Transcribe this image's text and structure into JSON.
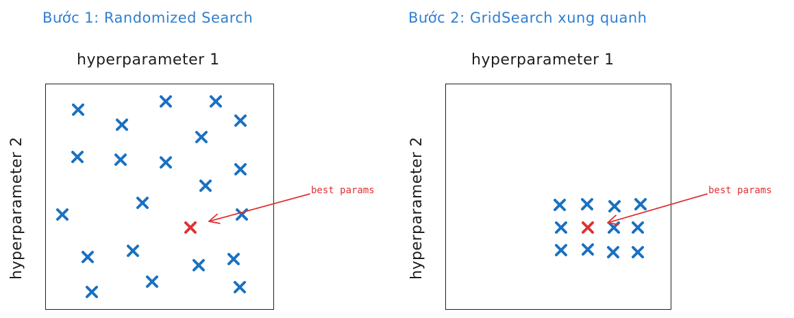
{
  "panels": [
    {
      "title": "Bước 1: Randomized Search",
      "x_axis_label": "hyperparameter 1",
      "y_axis_label": "hyperparameter 2",
      "annotation": "best params",
      "marker_color": "#1971c2",
      "best_color": "#e03131"
    },
    {
      "title": "Bước 2: GridSearch xung quanh",
      "x_axis_label": "hyperparameter 1",
      "y_axis_label": "hyperparameter 2",
      "annotation": "best params",
      "marker_color": "#1971c2",
      "best_color": "#e03131"
    }
  ]
}
